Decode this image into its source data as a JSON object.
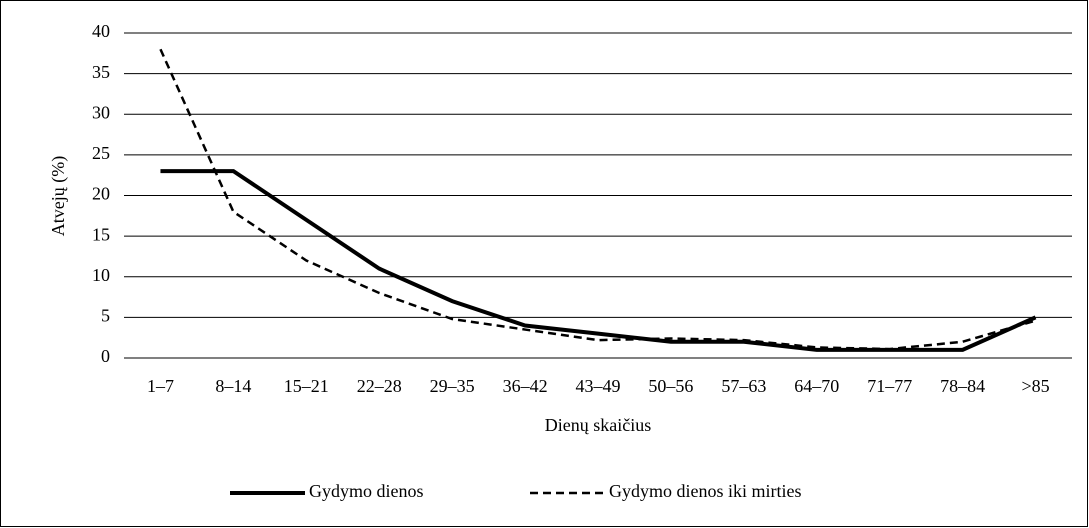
{
  "chart_data": {
    "type": "line",
    "x_label": "Dienų skaičius",
    "y_label": "Atvejų (%)",
    "categories": [
      "1–7",
      "8–14",
      "15–21",
      "22–28",
      "29–35",
      "36–42",
      "43–49",
      "50–56",
      "57–63",
      "64–70",
      "71–77",
      "78–84",
      ">85"
    ],
    "series": [
      {
        "name": "Gydymo dienos",
        "color": "#000000",
        "dash": false,
        "values": [
          23,
          23,
          17,
          11,
          7,
          4,
          3,
          2,
          2,
          1,
          1,
          1,
          5
        ]
      },
      {
        "name": "Gydymo dienos iki mirties",
        "color": "#000000",
        "dash": true,
        "values": [
          38,
          18,
          12,
          8,
          4.8,
          3.5,
          2.2,
          2.4,
          2.2,
          1.3,
          1.1,
          2,
          4.6
        ]
      }
    ],
    "ylim": [
      0,
      40
    ],
    "yticks": [
      0,
      5,
      10,
      15,
      20,
      25,
      30,
      35,
      40
    ],
    "grid": true,
    "legend": "bottom"
  }
}
